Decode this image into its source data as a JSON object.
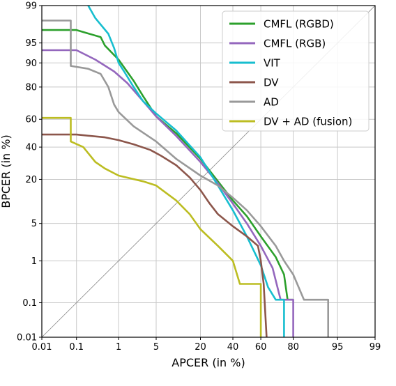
{
  "chart_data": {
    "type": "line",
    "title": "",
    "xlabel": "APCER (in %)",
    "ylabel": "BPCER (in %)",
    "scale": "normal-deviate (DET)",
    "xlim": [
      0.01,
      99
    ],
    "ylim": [
      0.01,
      99
    ],
    "x_ticks": [
      0.01,
      0.1,
      1,
      5,
      20,
      40,
      60,
      80,
      95,
      99
    ],
    "x_tick_labels": [
      "0.01",
      "0.1",
      "1",
      "5",
      "20",
      "40",
      "60",
      "80",
      "95",
      "99"
    ],
    "y_ticks": [
      0.01,
      0.1,
      1,
      5,
      20,
      40,
      60,
      80,
      90,
      95,
      99
    ],
    "y_tick_labels": [
      "0.01",
      "0.1",
      "1",
      "5",
      "20",
      "40",
      "60",
      "80",
      "90",
      "95",
      "99"
    ],
    "grid": true,
    "legend_position": "top-right",
    "diagonal_reference": true,
    "series": [
      {
        "name": "CMFL (RGBD)",
        "color": "#2ca02c",
        "points": [
          [
            0.01,
            97.0
          ],
          [
            0.1,
            97.0
          ],
          [
            0.4,
            96.0
          ],
          [
            0.5,
            94.5
          ],
          [
            1,
            91.0
          ],
          [
            2,
            83.0
          ],
          [
            3,
            75.0
          ],
          [
            5,
            62.0
          ],
          [
            10,
            50.0
          ],
          [
            20,
            32.0
          ],
          [
            30,
            19.0
          ],
          [
            40,
            11.0
          ],
          [
            50,
            6.5
          ],
          [
            60,
            3.0
          ],
          [
            70,
            1.2
          ],
          [
            75,
            0.5
          ],
          [
            77,
            0.12
          ],
          [
            80,
            0.12
          ]
        ]
      },
      {
        "name": "CMFL (RGB)",
        "color": "#9467bd",
        "points": [
          [
            0.01,
            93.5
          ],
          [
            0.1,
            93.5
          ],
          [
            0.3,
            91.0
          ],
          [
            0.8,
            87.0
          ],
          [
            1.5,
            82.0
          ],
          [
            3,
            72.0
          ],
          [
            5,
            62.0
          ],
          [
            10,
            48.0
          ],
          [
            20,
            30.0
          ],
          [
            30,
            18.0
          ],
          [
            40,
            10.0
          ],
          [
            50,
            5.0
          ],
          [
            60,
            2.0
          ],
          [
            68,
            0.7
          ],
          [
            73,
            0.12
          ],
          [
            80,
            0.12
          ],
          [
            80,
            0.01
          ]
        ]
      },
      {
        "name": "VIT",
        "color": "#17becf",
        "points": [
          [
            0.2,
            99.0
          ],
          [
            0.3,
            98.2
          ],
          [
            0.6,
            96.5
          ],
          [
            0.8,
            94.0
          ],
          [
            1,
            90.0
          ],
          [
            1.3,
            87.0
          ],
          [
            2,
            80.0
          ],
          [
            3,
            72.0
          ],
          [
            5,
            64.0
          ],
          [
            10,
            52.0
          ],
          [
            20,
            33.0
          ],
          [
            30,
            17.0
          ],
          [
            40,
            8.0
          ],
          [
            50,
            3.0
          ],
          [
            60,
            0.8
          ],
          [
            65,
            0.25
          ],
          [
            70,
            0.12
          ],
          [
            75,
            0.12
          ],
          [
            75,
            0.01
          ]
        ]
      },
      {
        "name": "DV",
        "color": "#8c564b",
        "points": [
          [
            0.01,
            49.0
          ],
          [
            0.1,
            49.0
          ],
          [
            0.5,
            47.0
          ],
          [
            1,
            45.0
          ],
          [
            2,
            42.0
          ],
          [
            4,
            38.0
          ],
          [
            6,
            34.0
          ],
          [
            10,
            28.0
          ],
          [
            15,
            21.0
          ],
          [
            20,
            15.0
          ],
          [
            25,
            10.0
          ],
          [
            30,
            7.0
          ],
          [
            40,
            4.5
          ],
          [
            50,
            3.0
          ],
          [
            58,
            2.0
          ],
          [
            60,
            1.0
          ],
          [
            62,
            0.3
          ],
          [
            64,
            0.01
          ]
        ]
      },
      {
        "name": "AD",
        "color": "#999999",
        "points": [
          [
            0.01,
            98.0
          ],
          [
            0.07,
            98.0
          ],
          [
            0.07,
            89.0
          ],
          [
            0.2,
            88.0
          ],
          [
            0.4,
            86.0
          ],
          [
            0.6,
            80.0
          ],
          [
            0.8,
            70.0
          ],
          [
            1,
            65.0
          ],
          [
            2,
            55.0
          ],
          [
            5,
            44.0
          ],
          [
            10,
            32.0
          ],
          [
            20,
            22.0
          ],
          [
            30,
            17.0
          ],
          [
            40,
            12.0
          ],
          [
            50,
            8.0
          ],
          [
            60,
            4.5
          ],
          [
            70,
            2.0
          ],
          [
            75,
            1.0
          ],
          [
            80,
            0.5
          ],
          [
            85,
            0.12
          ],
          [
            93,
            0.12
          ],
          [
            93,
            0.01
          ]
        ]
      },
      {
        "name": "DV + AD (fusion)",
        "color": "#bcbd22",
        "points": [
          [
            0.01,
            61.0
          ],
          [
            0.07,
            61.0
          ],
          [
            0.07,
            44.0
          ],
          [
            0.15,
            40.0
          ],
          [
            0.3,
            30.0
          ],
          [
            0.5,
            26.0
          ],
          [
            1,
            22.0
          ],
          [
            3,
            19.0
          ],
          [
            5,
            17.0
          ],
          [
            10,
            11.0
          ],
          [
            15,
            7.0
          ],
          [
            20,
            4.0
          ],
          [
            30,
            2.0
          ],
          [
            40,
            1.0
          ],
          [
            45,
            0.3
          ],
          [
            60,
            0.3
          ],
          [
            60,
            0.01
          ]
        ]
      }
    ]
  }
}
